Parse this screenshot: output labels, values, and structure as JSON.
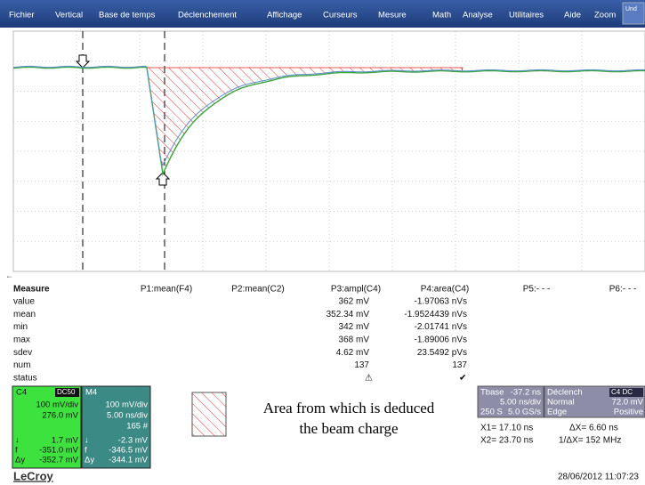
{
  "menu": {
    "items": [
      "Fichier",
      "Vertical",
      "Base de temps",
      "Déclenchement",
      "Affichage",
      "Curseurs",
      "Mesure",
      "Math",
      "Analyse",
      "Utilitaires",
      "Aide"
    ],
    "zoom": "Zoom",
    "undo": "Und"
  },
  "measure": {
    "title": "Measure",
    "columns": [
      "P1:mean(F4)",
      "P2:mean(C2)",
      "P3:ampl(C4)",
      "P4:area(C4)",
      "P5:- - -",
      "P6:- - -"
    ],
    "rows": [
      {
        "label": "value",
        "p3": "362 mV",
        "p4": "-1.97063 nVs"
      },
      {
        "label": "mean",
        "p3": "352.34 mV",
        "p4": "-1.9524439 nVs"
      },
      {
        "label": "min",
        "p3": "342 mV",
        "p4": "-2.01741 nVs"
      },
      {
        "label": "max",
        "p3": "368 mV",
        "p4": "-1.89006 nVs"
      },
      {
        "label": "sdev",
        "p3": "4.62 mV",
        "p4": "23.5492 pVs"
      },
      {
        "label": "num",
        "p3": "137",
        "p4": "137"
      },
      {
        "label": "status"
      }
    ]
  },
  "c4": {
    "name": "C4",
    "coupling": "DC50",
    "scale": "100 mV/div",
    "offset": "276.0 mV",
    "readouts": [
      {
        "sym": "↓",
        "val": "1.7 mV"
      },
      {
        "sym": "f",
        "val": "-351.0 mV"
      },
      {
        "sym": "Δy",
        "val": "-352.7 mV"
      }
    ]
  },
  "m4": {
    "name": "M4",
    "scale": "100 mV/div",
    "timebase": "5.00 ns/div",
    "count": "165 #",
    "readouts": [
      {
        "sym": "↓",
        "val": "-2.3 mV"
      },
      {
        "sym": "f",
        "val": "-346.5 mV"
      },
      {
        "sym": "Δy",
        "val": "-344.1 mV"
      }
    ]
  },
  "legend": {
    "line1": "Area from which is deduced",
    "line2": "the beam charge"
  },
  "timebase": {
    "title": "Tbase",
    "delay": "-37.2 ns",
    "scale": "5.00 ns/div",
    "samples": "250 S",
    "rate": "5.0 GS/s"
  },
  "trigger": {
    "title": "Déclench",
    "badge": "C4 DC",
    "mode": "Normal",
    "level": "72.0 mV",
    "type": "Edge",
    "slope": "Positive"
  },
  "cursors": {
    "x1": "X1= 17.10 ns",
    "dx": "ΔX= 6.60 ns",
    "x2": "X2= 23.70 ns",
    "inv": "1/ΔX= 152 MHz"
  },
  "footer": {
    "brand": "LeCroy",
    "date": "28/06/2012 11:07:23"
  }
}
